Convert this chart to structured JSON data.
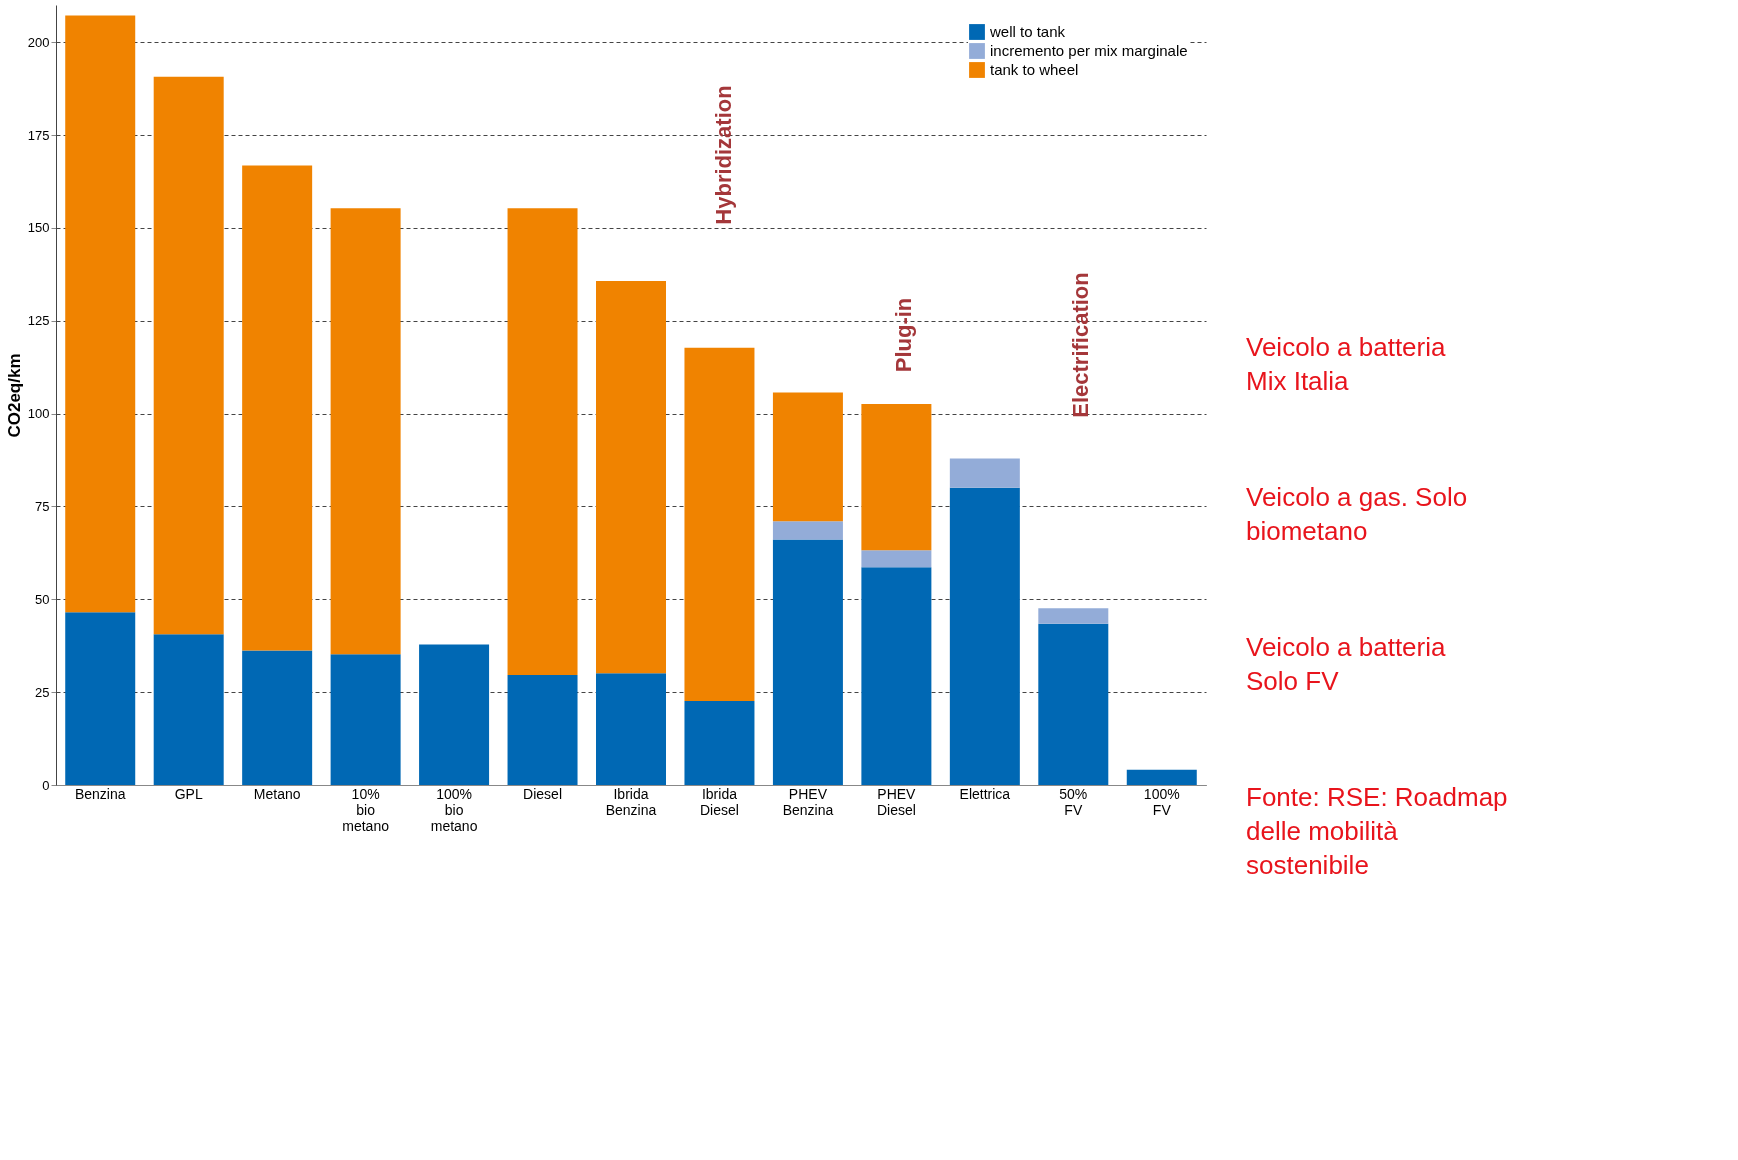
{
  "chart_data": {
    "type": "bar",
    "stacked": true,
    "categories": [
      "Benzina",
      "GPL",
      "Metano",
      "10% bio metano",
      "100% bio metano",
      "Diesel",
      "Ibrida Benzina",
      "Ibrida Diesel",
      "PHEV Benzina",
      "PHEV Diesel",
      "Elettrica",
      "50% FV",
      "100% FV"
    ],
    "series": [
      {
        "name": "well to tank",
        "color": "#0068b4",
        "values": [
          46.5,
          40.6,
          36.2,
          35.2,
          37.8,
          29.6,
          30.1,
          22.6,
          66.1,
          58.6,
          80,
          43.4,
          4.1
        ]
      },
      {
        "name": "incremento per mix marginale",
        "color": "#93acd8",
        "values": [
          null,
          null,
          null,
          null,
          null,
          null,
          null,
          null,
          4.9,
          4.6,
          7.9,
          4.2,
          null
        ]
      },
      {
        "name": "tank to wheel",
        "color": "#f08300",
        "values": [
          160.7,
          150.1,
          130.6,
          120.1,
          null,
          125.7,
          105.6,
          95.1,
          34.7,
          39.4,
          null,
          null,
          null
        ]
      }
    ],
    "ylabel": "CO2eq/km",
    "ylim": [
      0,
      210
    ],
    "yticks": [
      0,
      25,
      50,
      75,
      100,
      125,
      150,
      175,
      200
    ],
    "grid": "y",
    "legend": "top right",
    "annotations": [
      "Hybridization",
      "Plug-in",
      "Electrification",
      "Veicolo a batteria Mix Italia",
      "Veicolo a gas. Solo biometano",
      "Veicolo a batteria Solo FV",
      "Fonte: RSE: Roadmap delle mobilità sostenibile"
    ]
  }
}
